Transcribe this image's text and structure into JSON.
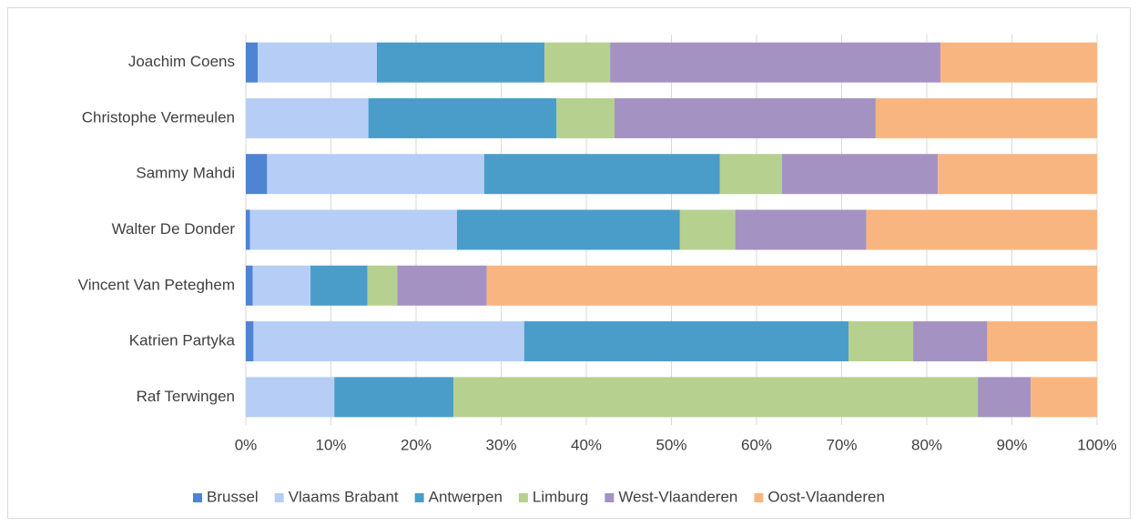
{
  "chart_data": {
    "type": "stacked-barh",
    "categories": [
      "Joachim Coens",
      "Christophe Vermeulen",
      "Sammy Mahdi",
      "Walter De Donder",
      "Vincent Van Peteghem",
      "Katrien Partyka",
      "Raf Terwingen"
    ],
    "series": [
      {
        "name": "Brussel",
        "color": "#4f83d3",
        "values": [
          1.4,
          0,
          2.5,
          0.5,
          0.8,
          0.9,
          0
        ]
      },
      {
        "name": "Vlaams Brabant",
        "color": "#b6cef5",
        "values": [
          14.0,
          14.4,
          25.5,
          24.3,
          6.8,
          31.8,
          10.4
        ]
      },
      {
        "name": "Antwerpen",
        "color": "#4a9dc9",
        "values": [
          19.7,
          22.1,
          27.7,
          26.2,
          6.7,
          38.1,
          14.0
        ]
      },
      {
        "name": "Limburg",
        "color": "#b6d08f",
        "values": [
          7.7,
          6.8,
          7.3,
          6.5,
          3.5,
          7.6,
          61.6
        ]
      },
      {
        "name": "West-Vlaanderen",
        "color": "#a492c3",
        "values": [
          38.8,
          30.7,
          18.3,
          15.4,
          10.5,
          8.7,
          6.2
        ]
      },
      {
        "name": "Oost-Vlaanderen",
        "color": "#f9b580",
        "values": [
          18.4,
          26.0,
          18.7,
          27.1,
          71.7,
          12.9,
          7.8
        ]
      }
    ],
    "xlim": [
      0,
      100
    ],
    "xticks": [
      {
        "value": 0,
        "label": "0%"
      },
      {
        "value": 10,
        "label": "10%"
      },
      {
        "value": 20,
        "label": "20%"
      },
      {
        "value": 30,
        "label": "30%"
      },
      {
        "value": 40,
        "label": "40%"
      },
      {
        "value": 50,
        "label": "50%"
      },
      {
        "value": 60,
        "label": "60%"
      },
      {
        "value": 70,
        "label": "70%"
      },
      {
        "value": 80,
        "label": "80%"
      },
      {
        "value": 90,
        "label": "90%"
      },
      {
        "value": 100,
        "label": "100%"
      }
    ],
    "grid": true,
    "legend": "bottom"
  }
}
